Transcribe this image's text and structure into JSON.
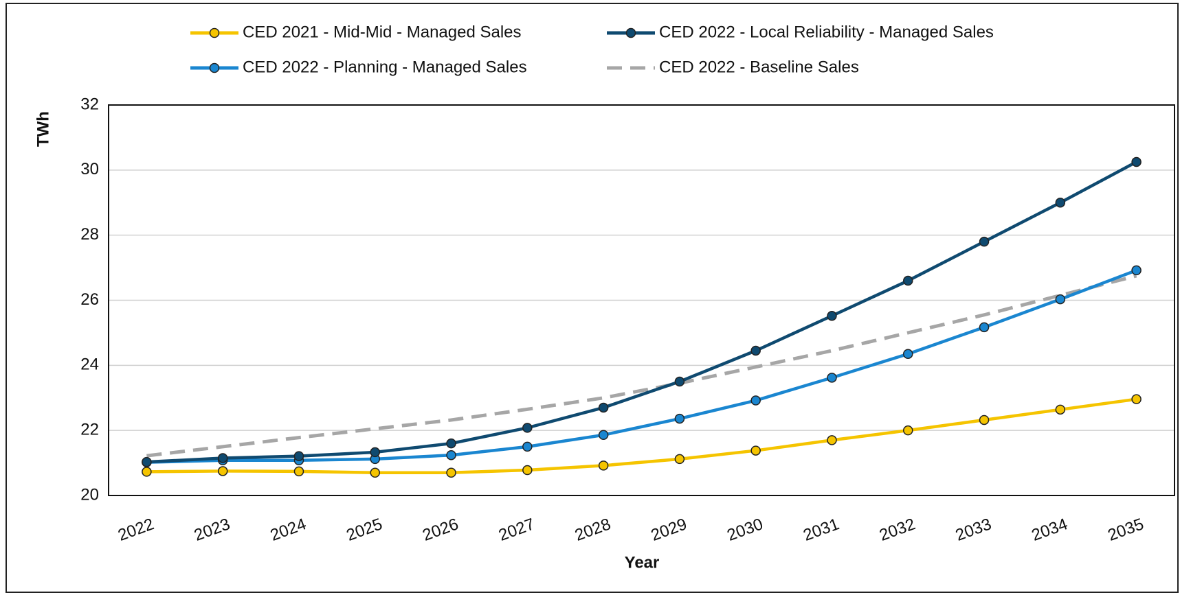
{
  "chart_data": {
    "type": "line",
    "x_label": "Year",
    "y_label": "TWh",
    "categories": [
      "2022",
      "2023",
      "2024",
      "2025",
      "2026",
      "2027",
      "2028",
      "2029",
      "2030",
      "2031",
      "2032",
      "2033",
      "2034",
      "2035"
    ],
    "series": [
      {
        "name": "CED 2021 - Mid-Mid - Managed Sales",
        "color": "#f5c400",
        "line_style": "solid",
        "markers": true,
        "values": [
          20.73,
          20.75,
          20.74,
          20.7,
          20.7,
          20.78,
          20.92,
          21.12,
          21.38,
          21.7,
          22.0,
          22.32,
          22.64,
          22.96
        ]
      },
      {
        "name": "CED 2022 - Local Reliability - Managed Sales",
        "color": "#0f4a70",
        "line_style": "solid",
        "markers": true,
        "values": [
          21.03,
          21.15,
          21.21,
          21.33,
          21.6,
          22.08,
          22.7,
          23.5,
          24.45,
          25.52,
          26.6,
          27.8,
          29.0,
          30.25
        ]
      },
      {
        "name": "CED 2022 - Planning - Managed Sales",
        "color": "#1a86d0",
        "line_style": "solid",
        "markers": true,
        "values": [
          21.02,
          21.08,
          21.08,
          21.12,
          21.24,
          21.5,
          21.86,
          22.36,
          22.92,
          23.62,
          24.35,
          25.17,
          26.03,
          26.92
        ]
      },
      {
        "name": "CED 2022 -  Baseline Sales",
        "color": "#a6a6a6",
        "line_style": "dashed",
        "markers": false,
        "values": [
          21.22,
          21.5,
          21.78,
          22.05,
          22.32,
          22.65,
          23.0,
          23.45,
          23.95,
          24.45,
          25.0,
          25.55,
          26.15,
          26.75
        ]
      }
    ],
    "ylim": [
      20,
      32
    ],
    "yticks": [
      20,
      22,
      24,
      26,
      28,
      30,
      32
    ],
    "grid": true,
    "legend": "top"
  }
}
